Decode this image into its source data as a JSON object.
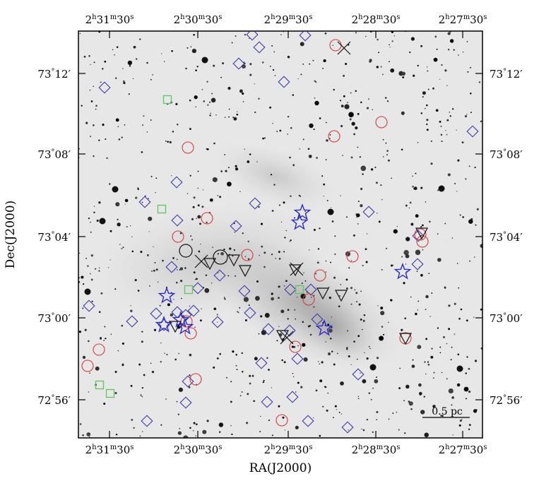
{
  "colors": {
    "diamond": "#3a3aa8",
    "circle": "#d23a3a",
    "square": "#5cc85c",
    "star": "#2a2acc",
    "triangle": "#111111",
    "cross": "#111111",
    "ring": "#111111"
  },
  "axes": {
    "xlabel": "RA(J2000)",
    "ylabel": "Dec(J2000)",
    "xticks_top": [
      {
        "h": "2",
        "m": "31",
        "s": "30"
      },
      {
        "h": "2",
        "m": "30",
        "s": "30"
      },
      {
        "h": "2",
        "m": "29",
        "s": "30"
      },
      {
        "h": "2",
        "m": "28",
        "s": "30"
      },
      {
        "h": "2",
        "m": "27",
        "s": "30"
      }
    ],
    "xticks_bottom": [
      {
        "h": "2",
        "m": "31",
        "s": "30"
      },
      {
        "h": "2",
        "m": "30",
        "s": "30"
      },
      {
        "h": "2",
        "m": "29",
        "s": "30"
      },
      {
        "h": "2",
        "m": "28",
        "s": "30"
      },
      {
        "h": "2",
        "m": "27",
        "s": "30"
      }
    ],
    "yticks": [
      {
        "d": "73",
        "m": "12"
      },
      {
        "d": "73",
        "m": "08"
      },
      {
        "d": "73",
        "m": "04"
      },
      {
        "d": "73",
        "m": "00"
      },
      {
        "d": "72",
        "m": "56"
      }
    ]
  },
  "scale_bar": {
    "label": "0.5 pc"
  },
  "icons": [
    "diamond-marker-icon",
    "circle-marker-icon",
    "square-marker-icon",
    "star-marker-icon",
    "triangle-marker-icon",
    "cross-marker-icon"
  ]
}
